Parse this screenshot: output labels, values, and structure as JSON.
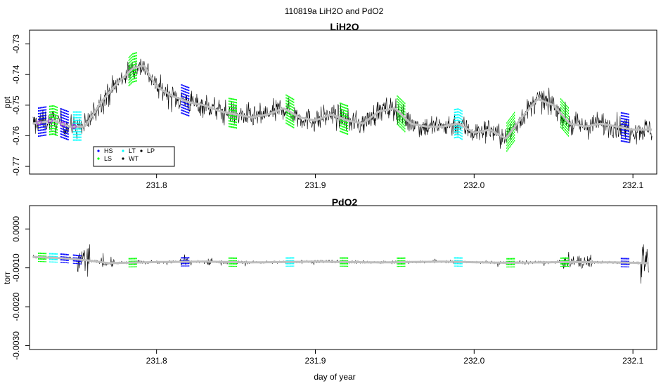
{
  "figure": {
    "suptitle": "110819a   LiH2O and PdO2",
    "xlabel": "day of year"
  },
  "chart_data": [
    {
      "type": "line",
      "title": "LiH2O",
      "xlabel": "",
      "ylabel": "ppt",
      "xlim": [
        231.72,
        232.115
      ],
      "ylim": [
        -0.7725,
        -0.7255
      ],
      "xticks": [
        231.8,
        231.9,
        232.0,
        232.1
      ],
      "xtick_labels": [
        "231.8",
        "231.9",
        "232.0",
        "232.1"
      ],
      "yticks": [
        -0.73,
        -0.74,
        -0.75,
        -0.76,
        -0.77
      ],
      "ytick_labels": [
        "-0.73",
        "-0.74",
        "-0.75",
        "-0.76",
        "-0.77"
      ],
      "series": [
        {
          "name": "",
          "color": "#000000",
          "style": "raw noisy trace",
          "x": [
            231.722,
            231.735,
            231.745,
            231.755,
            231.765,
            231.775,
            231.785,
            231.792,
            231.8,
            231.81,
            231.82,
            231.83,
            231.84,
            231.85,
            231.86,
            231.87,
            231.88,
            231.89,
            231.9,
            231.91,
            231.92,
            231.93,
            231.94,
            231.95,
            231.96,
            231.97,
            231.98,
            231.99,
            232.0,
            232.01,
            232.02,
            232.03,
            232.04,
            232.05,
            232.06,
            232.07,
            232.08,
            232.09,
            232.1,
            232.112
          ],
          "y": [
            -0.756,
            -0.755,
            -0.757,
            -0.757,
            -0.749,
            -0.743,
            -0.738,
            -0.737,
            -0.744,
            -0.747,
            -0.749,
            -0.75,
            -0.752,
            -0.753,
            -0.754,
            -0.753,
            -0.751,
            -0.754,
            -0.755,
            -0.753,
            -0.755,
            -0.756,
            -0.752,
            -0.751,
            -0.756,
            -0.757,
            -0.757,
            -0.756,
            -0.759,
            -0.758,
            -0.761,
            -0.754,
            -0.748,
            -0.75,
            -0.756,
            -0.757,
            -0.756,
            -0.757,
            -0.758,
            -0.758
          ]
        },
        {
          "name": "",
          "color": "#bebebe",
          "style": "smoothed",
          "x": [
            231.722,
            231.735,
            231.745,
            231.755,
            231.765,
            231.775,
            231.785,
            231.792,
            231.8,
            231.81,
            231.82,
            231.83,
            231.84,
            231.85,
            231.86,
            231.87,
            231.88,
            231.89,
            231.9,
            231.91,
            231.92,
            231.93,
            231.94,
            231.95,
            231.96,
            231.97,
            231.98,
            231.99,
            232.0,
            232.01,
            232.02,
            232.03,
            232.04,
            232.05,
            232.06,
            232.07,
            232.08,
            232.09,
            232.1,
            232.112
          ],
          "y": [
            -0.756,
            -0.755,
            -0.757,
            -0.757,
            -0.749,
            -0.743,
            -0.738,
            -0.737,
            -0.744,
            -0.747,
            -0.749,
            -0.75,
            -0.752,
            -0.753,
            -0.754,
            -0.753,
            -0.751,
            -0.754,
            -0.755,
            -0.753,
            -0.755,
            -0.756,
            -0.752,
            -0.751,
            -0.756,
            -0.757,
            -0.757,
            -0.756,
            -0.759,
            -0.758,
            -0.761,
            -0.754,
            -0.748,
            -0.75,
            -0.756,
            -0.757,
            -0.756,
            -0.757,
            -0.758,
            -0.758
          ]
        }
      ],
      "calibration_segments": [
        {
          "x": 231.728,
          "color": "#0000ff"
        },
        {
          "x": 231.735,
          "color": "#00ff00"
        },
        {
          "x": 231.742,
          "color": "#0000ff"
        },
        {
          "x": 231.75,
          "color": "#00ffff"
        },
        {
          "x": 231.785,
          "color": "#00ff00"
        },
        {
          "x": 231.818,
          "color": "#0000ff"
        },
        {
          "x": 231.848,
          "color": "#00ff00"
        },
        {
          "x": 231.884,
          "color": "#00ff00"
        },
        {
          "x": 231.918,
          "color": "#00ff00"
        },
        {
          "x": 231.954,
          "color": "#00ff00"
        },
        {
          "x": 231.99,
          "color": "#00ffff"
        },
        {
          "x": 232.023,
          "color": "#00ff00"
        },
        {
          "x": 232.057,
          "color": "#00ff00"
        },
        {
          "x": 232.095,
          "color": "#0000ff"
        }
      ],
      "legend": {
        "position": "bottom-left",
        "entries": [
          {
            "label": "HS",
            "color": "#0000ff"
          },
          {
            "label": "LT",
            "color": "#00ffff"
          },
          {
            "label": "LP",
            "color": "#000000"
          },
          {
            "label": "LS",
            "color": "#00ff00"
          },
          {
            "label": "WT",
            "color": "#000000"
          }
        ]
      }
    },
    {
      "type": "line",
      "title": "PdO2",
      "xlabel": "day of year",
      "ylabel": "torr",
      "xlim": [
        231.72,
        232.115
      ],
      "ylim": [
        -0.0031,
        0.0006
      ],
      "xticks": [
        231.8,
        231.9,
        232.0,
        232.1
      ],
      "xtick_labels": [
        "231.8",
        "231.9",
        "232.0",
        "232.1"
      ],
      "yticks": [
        0.0,
        -0.001,
        -0.002,
        -0.003
      ],
      "ytick_labels": [
        "0.0000",
        "-0.0010",
        "-0.0020",
        "-0.0030"
      ],
      "series": [
        {
          "name": "",
          "color": "#000000",
          "style": "raw noisy trace",
          "x": [
            231.722,
            231.74,
            231.755,
            231.77,
            231.8,
            231.83,
            231.86,
            231.9,
            231.94,
            231.98,
            232.02,
            232.06,
            232.09,
            232.11
          ],
          "y": [
            -0.00072,
            -0.00075,
            -0.0008,
            -0.00088,
            -0.00085,
            -0.00084,
            -0.00086,
            -0.00084,
            -0.00086,
            -0.00084,
            -0.00087,
            -0.00085,
            -0.00086,
            -0.00088
          ]
        },
        {
          "name": "",
          "color": "#bebebe",
          "style": "smoothed",
          "x": [
            231.722,
            231.74,
            231.755,
            231.77,
            231.8,
            231.83,
            231.86,
            231.9,
            231.94,
            231.98,
            232.02,
            232.06,
            232.09,
            232.11
          ],
          "y": [
            -0.00072,
            -0.00075,
            -0.0008,
            -0.00088,
            -0.00085,
            -0.00084,
            -0.00086,
            -0.00084,
            -0.00086,
            -0.00084,
            -0.00087,
            -0.00085,
            -0.00086,
            -0.00088
          ]
        }
      ],
      "calibration_segments": [
        {
          "x": 231.728,
          "color": "#00ff00"
        },
        {
          "x": 231.735,
          "color": "#00ffff"
        },
        {
          "x": 231.742,
          "color": "#0000ff"
        },
        {
          "x": 231.75,
          "color": "#0000ff"
        },
        {
          "x": 231.785,
          "color": "#00ff00"
        },
        {
          "x": 231.818,
          "color": "#0000ff"
        },
        {
          "x": 231.848,
          "color": "#00ff00"
        },
        {
          "x": 231.884,
          "color": "#00ffff"
        },
        {
          "x": 231.918,
          "color": "#00ff00"
        },
        {
          "x": 231.954,
          "color": "#00ff00"
        },
        {
          "x": 231.99,
          "color": "#00ffff"
        },
        {
          "x": 232.023,
          "color": "#00ff00"
        },
        {
          "x": 232.057,
          "color": "#00ff00"
        },
        {
          "x": 232.095,
          "color": "#0000ff"
        }
      ]
    }
  ]
}
